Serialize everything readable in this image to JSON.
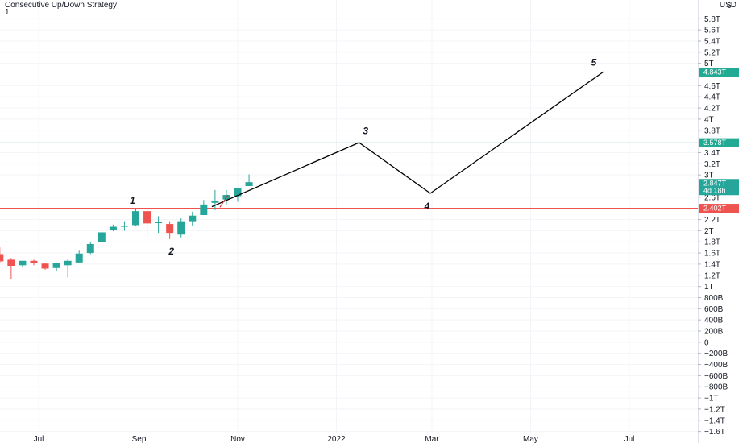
{
  "header": {
    "title": "Consecutive Up/Down Strategy",
    "subtitle": "1",
    "currency": "USD"
  },
  "chart_data": {
    "type": "candlestick",
    "y_unit": "T",
    "ylim": [
      -1.62,
      6.05
    ],
    "y_ticks": [
      {
        "v": 5.8,
        "label": "5.8T"
      },
      {
        "v": 5.6,
        "label": "5.6T"
      },
      {
        "v": 5.4,
        "label": "5.4T"
      },
      {
        "v": 5.2,
        "label": "5.2T"
      },
      {
        "v": 5.0,
        "label": "5T"
      },
      {
        "v": 4.6,
        "label": "4.6T"
      },
      {
        "v": 4.4,
        "label": "4.4T"
      },
      {
        "v": 4.2,
        "label": "4.2T"
      },
      {
        "v": 4.0,
        "label": "4T"
      },
      {
        "v": 3.8,
        "label": "3.8T"
      },
      {
        "v": 3.4,
        "label": "3.4T"
      },
      {
        "v": 3.2,
        "label": "3.2T"
      },
      {
        "v": 3.0,
        "label": "3T"
      },
      {
        "v": 2.6,
        "label": "2.6T"
      },
      {
        "v": 2.2,
        "label": "2.2T"
      },
      {
        "v": 2.0,
        "label": "2T"
      },
      {
        "v": 1.8,
        "label": "1.8T"
      },
      {
        "v": 1.6,
        "label": "1.6T"
      },
      {
        "v": 1.4,
        "label": "1.4T"
      },
      {
        "v": 1.2,
        "label": "1.2T"
      },
      {
        "v": 1.0,
        "label": "1T"
      },
      {
        "v": 0.8,
        "label": "800B"
      },
      {
        "v": 0.6,
        "label": "600B"
      },
      {
        "v": 0.4,
        "label": "400B"
      },
      {
        "v": 0.2,
        "label": "200B"
      },
      {
        "v": 0.0,
        "label": "0"
      },
      {
        "v": -0.2,
        "label": "−200B"
      },
      {
        "v": -0.4,
        "label": "−400B"
      },
      {
        "v": -0.6,
        "label": "−600B"
      },
      {
        "v": -0.8,
        "label": "−800B"
      },
      {
        "v": -1.0,
        "label": "−1T"
      },
      {
        "v": -1.2,
        "label": "−1.2T"
      },
      {
        "v": -1.4,
        "label": "−1.4T"
      },
      {
        "v": -1.6,
        "label": "−1.6T"
      }
    ],
    "top_tick_label": "6",
    "x_ticks": [
      {
        "date": "2021-07-01",
        "label": "Jul"
      },
      {
        "date": "2021-09-01",
        "label": "Sep"
      },
      {
        "date": "2021-11-01",
        "label": "Nov"
      },
      {
        "date": "2022-01-01",
        "label": "2022"
      },
      {
        "date": "2022-03-01",
        "label": "Mar"
      },
      {
        "date": "2022-05-01",
        "label": "May"
      },
      {
        "date": "2022-07-01",
        "label": "Jul"
      }
    ],
    "candles": [
      {
        "date": "2021-06-07",
        "o": 1.58,
        "h": 1.7,
        "l": 1.42,
        "c": 1.45
      },
      {
        "date": "2021-06-14",
        "o": 1.48,
        "h": 1.51,
        "l": 1.13,
        "c": 1.37
      },
      {
        "date": "2021-06-21",
        "o": 1.38,
        "h": 1.46,
        "l": 1.35,
        "c": 1.46
      },
      {
        "date": "2021-06-28",
        "o": 1.46,
        "h": 1.48,
        "l": 1.38,
        "c": 1.42
      },
      {
        "date": "2021-07-05",
        "o": 1.41,
        "h": 1.42,
        "l": 1.3,
        "c": 1.32
      },
      {
        "date": "2021-07-12",
        "o": 1.33,
        "h": 1.43,
        "l": 1.27,
        "c": 1.42
      },
      {
        "date": "2021-07-19",
        "o": 1.38,
        "h": 1.5,
        "l": 1.16,
        "c": 1.46
      },
      {
        "date": "2021-07-26",
        "o": 1.43,
        "h": 1.64,
        "l": 1.43,
        "c": 1.59
      },
      {
        "date": "2021-08-02",
        "o": 1.6,
        "h": 1.8,
        "l": 1.58,
        "c": 1.76
      },
      {
        "date": "2021-08-09",
        "o": 1.8,
        "h": 1.97,
        "l": 1.8,
        "c": 1.97
      },
      {
        "date": "2021-08-16",
        "o": 2.01,
        "h": 2.11,
        "l": 1.99,
        "c": 2.07
      },
      {
        "date": "2021-08-23",
        "o": 2.07,
        "h": 2.17,
        "l": 2.0,
        "c": 2.09
      },
      {
        "date": "2021-08-30",
        "o": 2.1,
        "h": 2.4,
        "l": 2.08,
        "c": 2.35
      },
      {
        "date": "2021-09-06",
        "o": 2.35,
        "h": 2.4,
        "l": 1.86,
        "c": 2.13
      },
      {
        "date": "2021-09-13",
        "o": 2.14,
        "h": 2.26,
        "l": 1.96,
        "c": 2.15
      },
      {
        "date": "2021-09-20",
        "o": 2.12,
        "h": 2.17,
        "l": 1.85,
        "c": 1.96
      },
      {
        "date": "2021-09-27",
        "o": 1.93,
        "h": 2.22,
        "l": 1.88,
        "c": 2.17
      },
      {
        "date": "2021-10-04",
        "o": 2.17,
        "h": 2.34,
        "l": 2.08,
        "c": 2.27
      },
      {
        "date": "2021-10-11",
        "o": 2.28,
        "h": 2.55,
        "l": 2.28,
        "c": 2.47
      },
      {
        "date": "2021-10-18",
        "o": 2.5,
        "h": 2.73,
        "l": 2.37,
        "c": 2.54
      },
      {
        "date": "2021-10-25",
        "o": 2.56,
        "h": 2.73,
        "l": 2.47,
        "c": 2.64
      },
      {
        "date": "2021-11-01",
        "o": 2.62,
        "h": 2.77,
        "l": 2.52,
        "c": 2.77
      },
      {
        "date": "2021-11-08",
        "o": 2.8,
        "h": 3.01,
        "l": 2.8,
        "c": 2.87
      }
    ],
    "projection_path": [
      {
        "date": "2021-10-16",
        "v": 2.43
      },
      {
        "date": "2022-01-15",
        "v": 3.58
      },
      {
        "date": "2022-02-28",
        "v": 2.67
      },
      {
        "date": "2022-06-15",
        "v": 4.85
      }
    ],
    "small_tick": [
      {
        "date": "2021-10-21",
        "v": 2.42
      },
      {
        "date": "2021-10-26",
        "v": 2.64
      }
    ],
    "wave_labels": [
      {
        "text": "1",
        "date": "2021-08-28",
        "v": 2.54
      },
      {
        "text": "2",
        "date": "2021-09-21",
        "v": 1.63
      },
      {
        "text": "3",
        "date": "2022-01-19",
        "v": 3.79
      },
      {
        "text": "4",
        "date": "2022-02-26",
        "v": 2.44
      },
      {
        "text": "5",
        "date": "2022-06-09",
        "v": 5.02
      }
    ],
    "levels": [
      {
        "v": 4.843,
        "label": "4.843T",
        "color": "#22ab94",
        "line": "#b2dfdb"
      },
      {
        "v": 3.578,
        "label": "3.578T",
        "color": "#22ab94",
        "line": "#b2dfdb"
      },
      {
        "v": 2.847,
        "label": "2.847T",
        "sublabel": "4d 18h",
        "color": "#26a69a",
        "line": null
      },
      {
        "v": 2.402,
        "label": "2.402T",
        "color": "#ef5350",
        "line": "#ef5350"
      }
    ],
    "colors": {
      "up": "#26a69a",
      "down": "#ef5350",
      "wick_up": "#26a69a",
      "wick_down": "#ef5350",
      "grid": "#f0f3fa"
    }
  }
}
